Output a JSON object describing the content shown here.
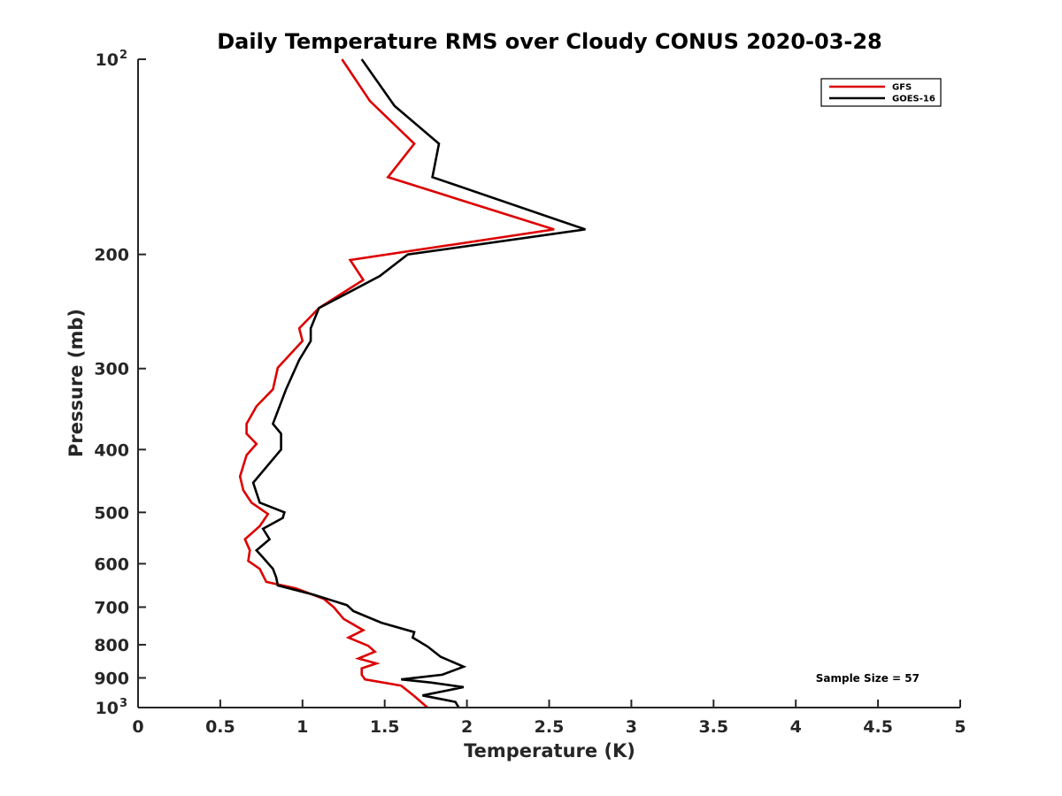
{
  "chart_data": {
    "type": "line",
    "title": "Daily Temperature RMS over Cloudy CONUS 2020-03-28",
    "xlabel": "Temperature (K)",
    "ylabel": "Pressure (mb)",
    "xlim": [
      0,
      5
    ],
    "ylim": [
      100,
      1000
    ],
    "y_scale": "log",
    "y_reversed": true,
    "grid": false,
    "legend_position": "top-right",
    "x_ticks": [
      0,
      0.5,
      1,
      1.5,
      2,
      2.5,
      3,
      3.5,
      4,
      4.5,
      5
    ],
    "x_tick_labels": [
      "0",
      "0.5",
      "1",
      "1.5",
      "2",
      "2.5",
      "3",
      "3.5",
      "4",
      "4.5",
      "5"
    ],
    "y_ticks": [
      {
        "value": 100,
        "label": "10",
        "sup": "2"
      },
      {
        "value": 200,
        "label": "200",
        "sup": ""
      },
      {
        "value": 300,
        "label": "300",
        "sup": ""
      },
      {
        "value": 400,
        "label": "400",
        "sup": ""
      },
      {
        "value": 500,
        "label": "500",
        "sup": ""
      },
      {
        "value": 600,
        "label": "600",
        "sup": ""
      },
      {
        "value": 700,
        "label": "700",
        "sup": ""
      },
      {
        "value": 800,
        "label": "800",
        "sup": ""
      },
      {
        "value": 900,
        "label": "900",
        "sup": ""
      },
      {
        "value": 1000,
        "label": "10",
        "sup": "3"
      }
    ],
    "annotation": "Sample Size = 57",
    "series": [
      {
        "name": "GFS",
        "color": "#dd0000",
        "points": [
          [
            1.24,
            100
          ],
          [
            1.41,
            116
          ],
          [
            1.68,
            135
          ],
          [
            1.52,
            152
          ],
          [
            2.53,
            183
          ],
          [
            1.29,
            204
          ],
          [
            1.37,
            219
          ],
          [
            1.1,
            242
          ],
          [
            0.98,
            260
          ],
          [
            1.0,
            272
          ],
          [
            0.85,
            299
          ],
          [
            0.82,
            323
          ],
          [
            0.72,
            343
          ],
          [
            0.66,
            365
          ],
          [
            0.66,
            378
          ],
          [
            0.72,
            392
          ],
          [
            0.66,
            408
          ],
          [
            0.62,
            440
          ],
          [
            0.64,
            462
          ],
          [
            0.69,
            483
          ],
          [
            0.79,
            503
          ],
          [
            0.74,
            525
          ],
          [
            0.65,
            550
          ],
          [
            0.68,
            572
          ],
          [
            0.67,
            594
          ],
          [
            0.74,
            611
          ],
          [
            0.78,
            640
          ],
          [
            0.96,
            655
          ],
          [
            1.13,
            680
          ],
          [
            1.19,
            700
          ],
          [
            1.25,
            730
          ],
          [
            1.37,
            760
          ],
          [
            1.28,
            780
          ],
          [
            1.4,
            803
          ],
          [
            1.44,
            820
          ],
          [
            1.34,
            840
          ],
          [
            1.45,
            855
          ],
          [
            1.36,
            870
          ],
          [
            1.36,
            890
          ],
          [
            1.38,
            905
          ],
          [
            1.6,
            925
          ],
          [
            1.68,
            960
          ],
          [
            1.76,
            1000
          ]
        ]
      },
      {
        "name": "GOES-16",
        "color": "#000000",
        "points": [
          [
            1.36,
            100
          ],
          [
            1.56,
            118
          ],
          [
            1.83,
            135
          ],
          [
            1.79,
            152
          ],
          [
            2.72,
            183
          ],
          [
            1.64,
            200
          ],
          [
            1.47,
            216
          ],
          [
            1.1,
            242
          ],
          [
            1.05,
            260
          ],
          [
            1.05,
            272
          ],
          [
            0.98,
            291
          ],
          [
            0.9,
            323
          ],
          [
            0.82,
            365
          ],
          [
            0.87,
            378
          ],
          [
            0.87,
            400
          ],
          [
            0.7,
            450
          ],
          [
            0.74,
            483
          ],
          [
            0.89,
            500
          ],
          [
            0.88,
            510
          ],
          [
            0.76,
            530
          ],
          [
            0.8,
            550
          ],
          [
            0.72,
            572
          ],
          [
            0.76,
            587
          ],
          [
            0.82,
            611
          ],
          [
            0.84,
            630
          ],
          [
            0.85,
            648
          ],
          [
            1.07,
            670
          ],
          [
            1.27,
            695
          ],
          [
            1.31,
            710
          ],
          [
            1.48,
            740
          ],
          [
            1.68,
            765
          ],
          [
            1.67,
            780
          ],
          [
            1.76,
            805
          ],
          [
            1.84,
            835
          ],
          [
            1.98,
            865
          ],
          [
            1.85,
            890
          ],
          [
            1.6,
            905
          ],
          [
            1.78,
            915
          ],
          [
            1.98,
            930
          ],
          [
            1.73,
            958
          ],
          [
            1.93,
            980
          ],
          [
            1.95,
            1000
          ]
        ]
      }
    ]
  }
}
